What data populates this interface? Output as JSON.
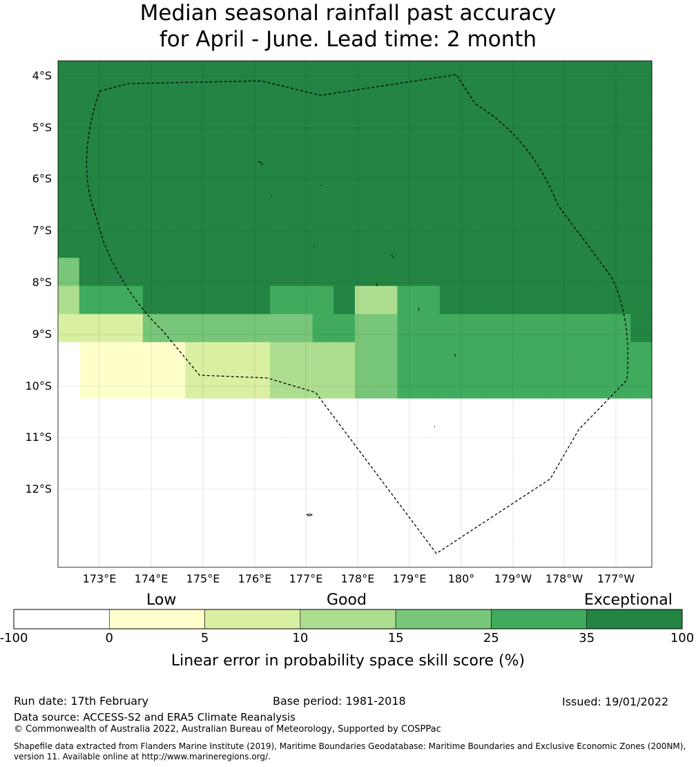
{
  "title_line1": "Median seasonal rainfall past accuracy",
  "title_line2": "for April - June. Lead time: 2 month",
  "lat_labels": [
    "4°S",
    "5°S",
    "6°S",
    "7°S",
    "8°S",
    "9°S",
    "10°S",
    "11°S",
    "12°S"
  ],
  "lon_labels": [
    "173°E",
    "174°E",
    "175°E",
    "176°E",
    "177°E",
    "178°E",
    "179°E",
    "180°",
    "179°W",
    "178°W",
    "177°W"
  ],
  "colorbar": {
    "categories": [
      "Low",
      "Good",
      "Exceptional"
    ],
    "ticks": [
      "-100",
      "0",
      "5",
      "10",
      "15",
      "25",
      "35",
      "100"
    ],
    "title": "Linear error in probability space skill score (%)",
    "bins": [
      {
        "range": [
          -100,
          0
        ],
        "color": "#ffffff"
      },
      {
        "range": [
          0,
          5
        ],
        "color": "#ffffcc"
      },
      {
        "range": [
          5,
          10
        ],
        "color": "#d9f0a3"
      },
      {
        "range": [
          10,
          15
        ],
        "color": "#addd8e"
      },
      {
        "range": [
          15,
          25
        ],
        "color": "#78c679"
      },
      {
        "range": [
          25,
          35
        ],
        "color": "#41ab5d"
      },
      {
        "range": [
          35,
          100
        ],
        "color": "#238443"
      }
    ]
  },
  "footer": {
    "run_date": "Run date: 17th February",
    "base_period": "Base period: 1981-2018",
    "issued": "Issued: 19/01/2022",
    "data_source": "Data source: ACCESS-S2 and ERA5 Climate Reanalysis",
    "copyright": "© Commonwealth of Australia 2022, Australian Bureau of Meteorology, Supported by COSPPac",
    "shapefile_line1": "Shapefile data extracted from Flanders Marine Institute (2019), Maritime Boundaries Geodatabase: Maritime Boundaries and Exclusive Economic Zones (200NM),",
    "shapefile_line2": "version 11. Available online at http://www.marineregions.org/."
  },
  "grid_category_rows": [
    "6666666666666666666666666666",
    "6666666666666666666666666666",
    "6666666666666666666666666666",
    "6666666666666666666666666666",
    "6666666666666666666666666666",
    "6666666666666666666666666666",
    "6666666666666666666666666666",
    "4666666666666666666666666666",
    "3555666666555633556666666666",
    "2222444444445544555555555556",
    "0111112222333344555555555555",
    "0111112222333344555555555555",
    "0000000000000000000000000000",
    "0000000000000000000000000000",
    "0000000000000000000000000000",
    "0000000000000000000000000000",
    "0000000000000000000000000000",
    "0000000000000000000000000000"
  ]
}
